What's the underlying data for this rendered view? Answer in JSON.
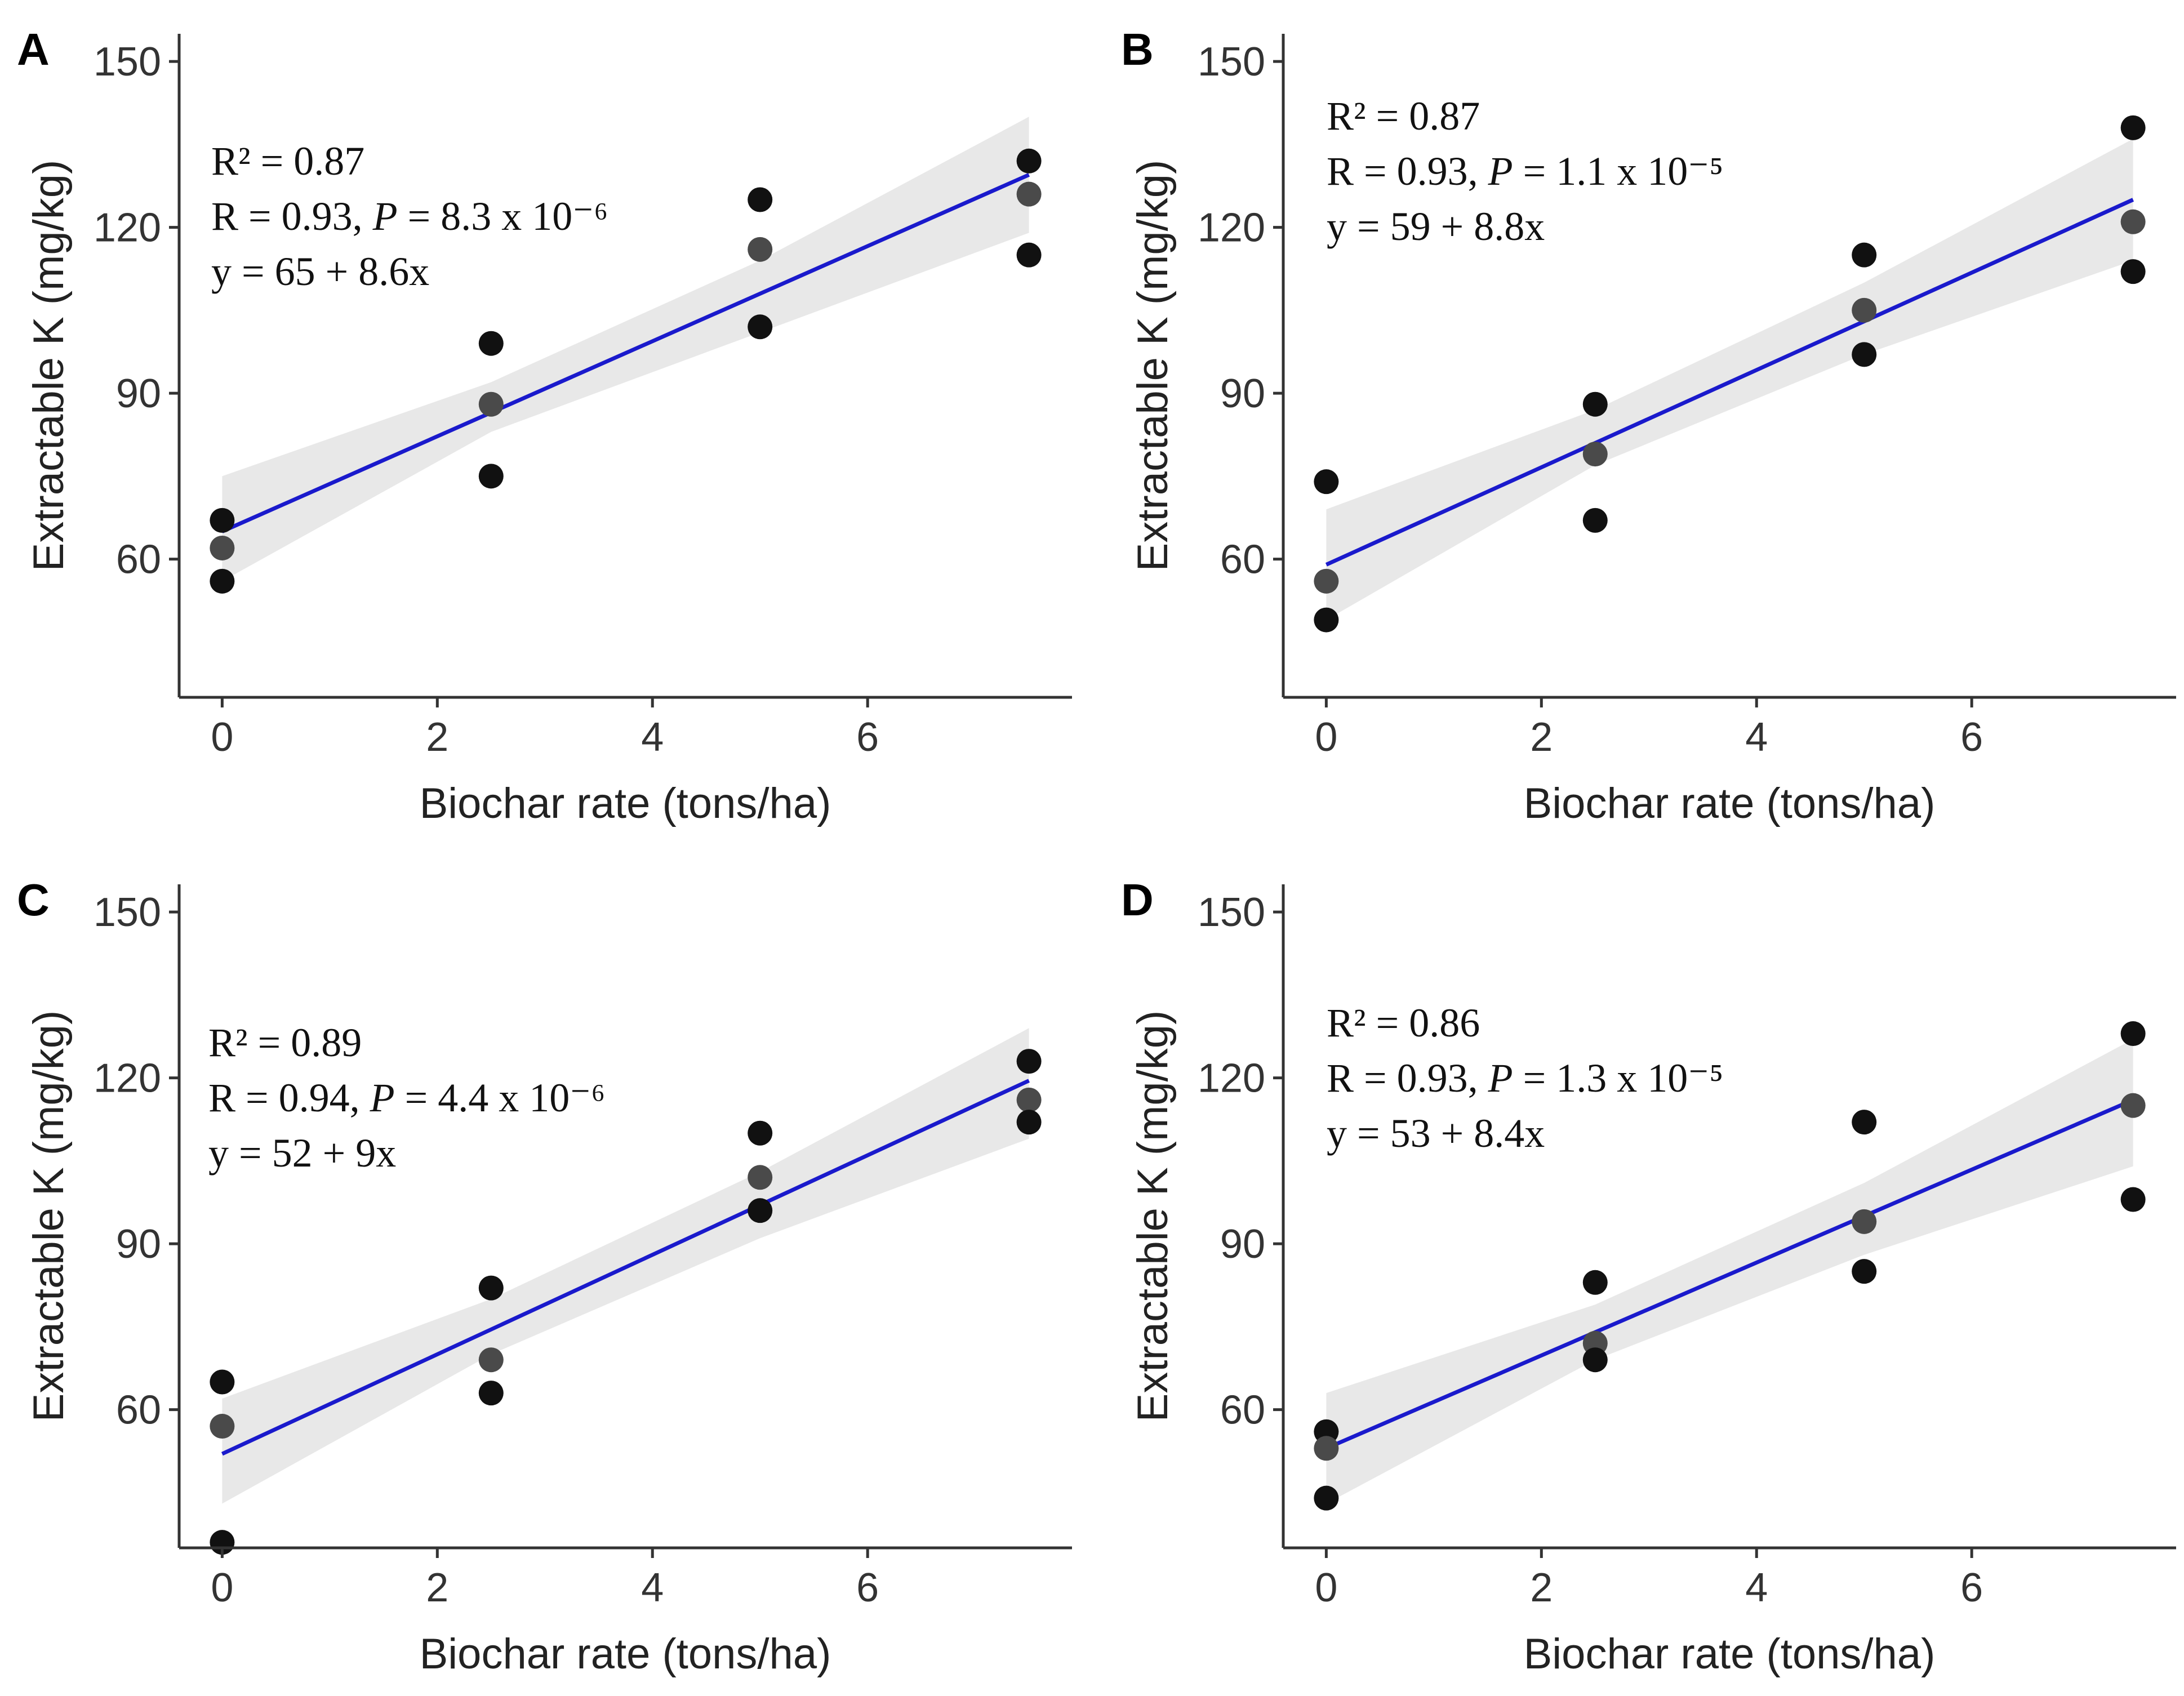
{
  "colors": {
    "fit_line": "#1a1acc",
    "band": "#e8e8e8",
    "point": "#111111",
    "point_overlap": "#4a4a4a"
  },
  "chart_data": [
    {
      "type": "scatter",
      "panel": "A",
      "xlabel": "Biochar rate (tons/ha)",
      "ylabel": "Extractable K (mg/kg)",
      "xlim": [
        -0.4,
        7.9
      ],
      "ylim": [
        35,
        155
      ],
      "x_ticks": [
        0,
        2,
        4,
        6
      ],
      "y_ticks": [
        60,
        90,
        120,
        150
      ],
      "annotation": {
        "r2_text": "R² = 0.87",
        "r_label": "R = 0.93, ",
        "p_symbol": "P",
        "p_value_text": " = 8.3 x 10⁻⁶",
        "equation": "y = 65 + 8.6x"
      },
      "fit": {
        "intercept": 65,
        "slope": 8.6
      },
      "band": [
        [
          0,
          56,
          75
        ],
        [
          2.5,
          83,
          92
        ],
        [
          5,
          101,
          114
        ],
        [
          7.5,
          119,
          140
        ]
      ],
      "points": [
        {
          "x": 0,
          "y": 67
        },
        {
          "x": 0,
          "y": 62
        },
        {
          "x": 0,
          "y": 56
        },
        {
          "x": 2.5,
          "y": 99
        },
        {
          "x": 2.5,
          "y": 88
        },
        {
          "x": 2.5,
          "y": 75
        },
        {
          "x": 5,
          "y": 125
        },
        {
          "x": 5,
          "y": 116
        },
        {
          "x": 5,
          "y": 102
        },
        {
          "x": 7.5,
          "y": 132
        },
        {
          "x": 7.5,
          "y": 126
        },
        {
          "x": 7.5,
          "y": 115
        }
      ]
    },
    {
      "type": "scatter",
      "panel": "B",
      "xlabel": "Biochar rate (tons/ha)",
      "ylabel": "Extractable K (mg/kg)",
      "xlim": [
        -0.4,
        7.9
      ],
      "ylim": [
        35,
        155
      ],
      "x_ticks": [
        0,
        2,
        4,
        6
      ],
      "y_ticks": [
        60,
        90,
        120,
        150
      ],
      "annotation": {
        "r2_text": "R² = 0.87",
        "r_label": "R = 0.93, ",
        "p_symbol": "P",
        "p_value_text": " = 1.1 x 10⁻⁵",
        "equation": "y = 59 + 8.8x"
      },
      "fit": {
        "intercept": 59,
        "slope": 8.8
      },
      "band": [
        [
          0,
          49,
          69
        ],
        [
          2.5,
          77,
          87
        ],
        [
          5,
          97,
          110
        ],
        [
          7.5,
          114,
          136
        ]
      ],
      "points": [
        {
          "x": 0,
          "y": 74
        },
        {
          "x": 0,
          "y": 56
        },
        {
          "x": 0,
          "y": 49
        },
        {
          "x": 2.5,
          "y": 88
        },
        {
          "x": 2.5,
          "y": 79
        },
        {
          "x": 2.5,
          "y": 67
        },
        {
          "x": 5,
          "y": 115
        },
        {
          "x": 5,
          "y": 105
        },
        {
          "x": 5,
          "y": 97
        },
        {
          "x": 7.5,
          "y": 138
        },
        {
          "x": 7.5,
          "y": 121
        },
        {
          "x": 7.5,
          "y": 112
        }
      ]
    },
    {
      "type": "scatter",
      "panel": "C",
      "xlabel": "Biochar rate (tons/ha)",
      "ylabel": "Extractable K (mg/kg)",
      "xlim": [
        -0.4,
        7.9
      ],
      "ylim": [
        35,
        155
      ],
      "x_ticks": [
        0,
        2,
        4,
        6
      ],
      "y_ticks": [
        60,
        90,
        120,
        150
      ],
      "annotation": {
        "r2_text": "R² = 0.89",
        "r_label": "R = 0.94, ",
        "p_symbol": "P",
        "p_value_text": " = 4.4 x 10⁻⁶",
        "equation": "y = 52 + 9x"
      },
      "fit": {
        "intercept": 52,
        "slope": 9
      },
      "band": [
        [
          0,
          43,
          62
        ],
        [
          2.5,
          70,
          80
        ],
        [
          5,
          91,
          103
        ],
        [
          7.5,
          109,
          129
        ]
      ],
      "points": [
        {
          "x": 0,
          "y": 65
        },
        {
          "x": 0,
          "y": 57
        },
        {
          "x": 0,
          "y": 36
        },
        {
          "x": 2.5,
          "y": 82
        },
        {
          "x": 2.5,
          "y": 69
        },
        {
          "x": 2.5,
          "y": 63
        },
        {
          "x": 5,
          "y": 110
        },
        {
          "x": 5,
          "y": 102
        },
        {
          "x": 5,
          "y": 96
        },
        {
          "x": 7.5,
          "y": 123
        },
        {
          "x": 7.5,
          "y": 116
        },
        {
          "x": 7.5,
          "y": 112
        }
      ]
    },
    {
      "type": "scatter",
      "panel": "D",
      "xlabel": "Biochar rate (tons/ha)",
      "ylabel": "Extractable K (mg/kg)",
      "xlim": [
        -0.4,
        7.9
      ],
      "ylim": [
        35,
        155
      ],
      "x_ticks": [
        0,
        2,
        4,
        6
      ],
      "y_ticks": [
        60,
        90,
        120,
        150
      ],
      "annotation": {
        "r2_text": "R² = 0.86",
        "r_label": "R = 0.93, ",
        "p_symbol": "P",
        "p_value_text": " = 1.3 x 10⁻⁵",
        "equation": "y = 53 + 8.4x"
      },
      "fit": {
        "intercept": 53,
        "slope": 8.4
      },
      "band": [
        [
          0,
          43,
          63
        ],
        [
          2.5,
          69,
          79
        ],
        [
          5,
          88,
          101
        ],
        [
          7.5,
          104,
          127
        ]
      ],
      "points": [
        {
          "x": 0,
          "y": 56
        },
        {
          "x": 0,
          "y": 53
        },
        {
          "x": 0,
          "y": 44
        },
        {
          "x": 2.5,
          "y": 83
        },
        {
          "x": 2.5,
          "y": 72
        },
        {
          "x": 2.5,
          "y": 69
        },
        {
          "x": 5,
          "y": 112
        },
        {
          "x": 5,
          "y": 94
        },
        {
          "x": 5,
          "y": 85
        },
        {
          "x": 7.5,
          "y": 128
        },
        {
          "x": 7.5,
          "y": 115
        },
        {
          "x": 7.5,
          "y": 98
        }
      ]
    }
  ]
}
